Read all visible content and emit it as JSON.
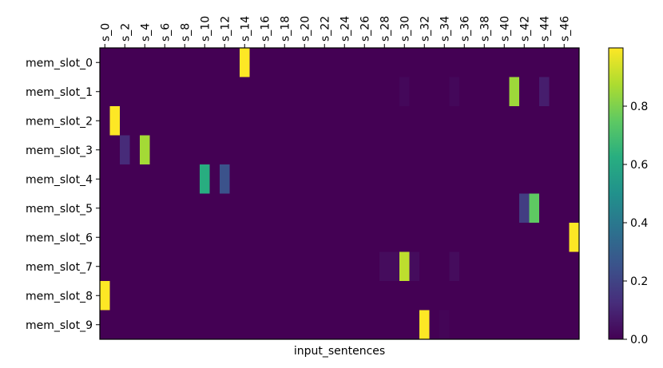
{
  "chart_data": {
    "type": "heatmap",
    "title": "",
    "xlabel": "input_sentences",
    "ylabel": "",
    "rows": [
      "mem_slot_0",
      "mem_slot_1",
      "mem_slot_2",
      "mem_slot_3",
      "mem_slot_4",
      "mem_slot_5",
      "mem_slot_6",
      "mem_slot_7",
      "mem_slot_8",
      "mem_slot_9"
    ],
    "x_tick_labels": [
      "s_0",
      "s_2",
      "s_4",
      "s_6",
      "s_8",
      "s_10",
      "s_12",
      "s_14",
      "s_16",
      "s_18",
      "s_20",
      "s_22",
      "s_24",
      "s_26",
      "s_28",
      "s_30",
      "s_32",
      "s_34",
      "s_36",
      "s_38",
      "s_40",
      "s_42",
      "s_44",
      "s_46"
    ],
    "n_columns": 48,
    "colormap": "viridis",
    "color_range": [
      0.0,
      1.0
    ],
    "colorbar_ticks": [
      "0.0",
      "0.2",
      "0.4",
      "0.6",
      "0.8"
    ],
    "colorbar_tick_values": [
      0.0,
      0.2,
      0.4,
      0.6,
      0.8
    ],
    "grid": false,
    "cells": [
      {
        "row": 0,
        "col": 14,
        "value": 1.0
      },
      {
        "row": 1,
        "col": 30,
        "value": 0.02
      },
      {
        "row": 1,
        "col": 35,
        "value": 0.02
      },
      {
        "row": 1,
        "col": 41,
        "value": 0.85
      },
      {
        "row": 1,
        "col": 44,
        "value": 0.08
      },
      {
        "row": 2,
        "col": 1,
        "value": 1.0
      },
      {
        "row": 3,
        "col": 2,
        "value": 0.12
      },
      {
        "row": 3,
        "col": 4,
        "value": 0.86
      },
      {
        "row": 4,
        "col": 10,
        "value": 0.62
      },
      {
        "row": 4,
        "col": 12,
        "value": 0.25
      },
      {
        "row": 5,
        "col": 42,
        "value": 0.18
      },
      {
        "row": 5,
        "col": 43,
        "value": 0.75
      },
      {
        "row": 6,
        "col": 47,
        "value": 1.0
      },
      {
        "row": 7,
        "col": 28,
        "value": 0.03
      },
      {
        "row": 7,
        "col": 29,
        "value": 0.03
      },
      {
        "row": 7,
        "col": 30,
        "value": 0.9
      },
      {
        "row": 7,
        "col": 31,
        "value": 0.03
      },
      {
        "row": 7,
        "col": 35,
        "value": 0.03
      },
      {
        "row": 8,
        "col": 0,
        "value": 1.0
      },
      {
        "row": 9,
        "col": 32,
        "value": 1.0
      },
      {
        "row": 9,
        "col": 34,
        "value": 0.01
      }
    ]
  }
}
